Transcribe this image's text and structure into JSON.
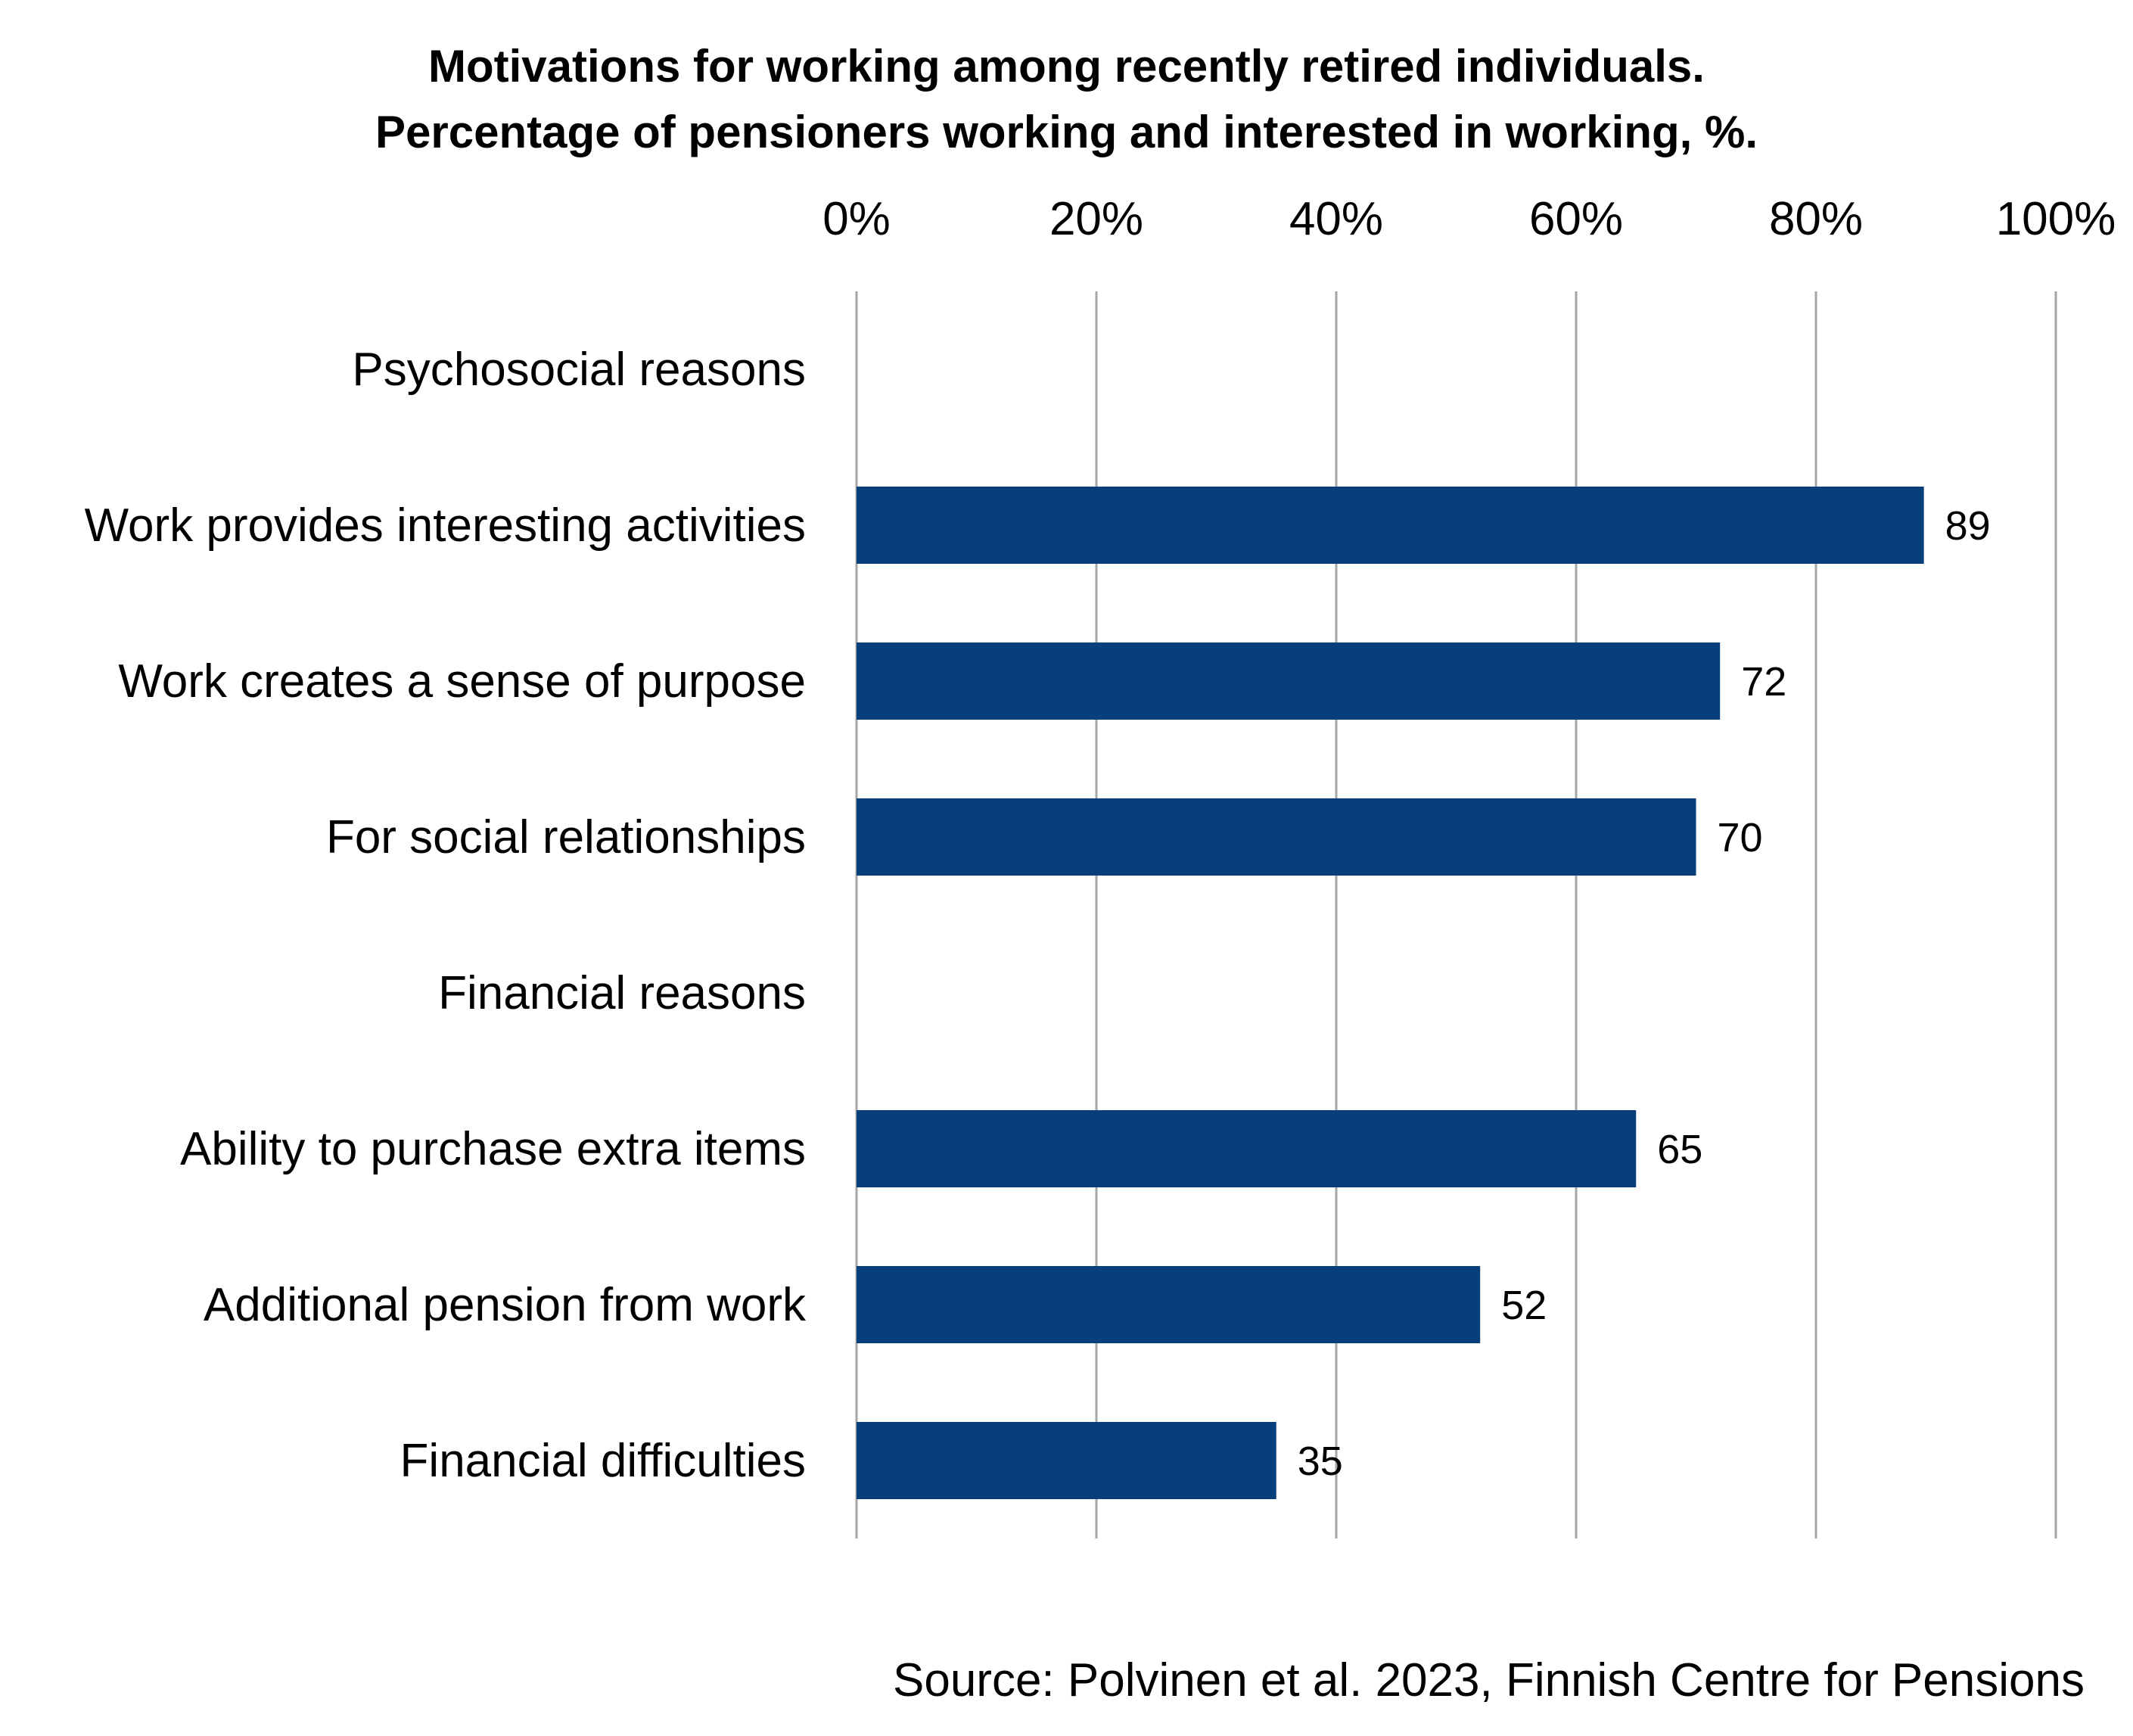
{
  "chart_data": {
    "type": "bar",
    "orientation": "horizontal",
    "title_lines": [
      "Motivations for working among recently retired individuals.",
      "Percentage of pensioners working and interested in working, %."
    ],
    "xlabel": "",
    "ylabel": "",
    "xlim": [
      0,
      100
    ],
    "x_ticks": [
      0,
      20,
      40,
      60,
      80,
      100
    ],
    "x_tick_labels": [
      "0%",
      "20%",
      "40%",
      "60%",
      "80%",
      "100%"
    ],
    "x_axis_position": "top",
    "grid": true,
    "legend": "none",
    "categories": [
      "Psychosocial reasons",
      "Work provides interesting activities",
      "Work creates a sense of purpose",
      "For social relationships",
      "Financial reasons",
      "Ability to purchase extra items",
      "Additional pension from work",
      "Financial difficulties"
    ],
    "values": [
      null,
      89,
      72,
      70,
      null,
      65,
      52,
      35
    ],
    "data_labels": [
      "",
      "89",
      "72",
      "70",
      "",
      "65",
      "52",
      "35"
    ],
    "bar_color": "#063F7C",
    "gridline_color": "#A6A6A6"
  },
  "footer": {
    "source": "Source: Polvinen et al. 2023, Finnish Centre for Pensions"
  }
}
